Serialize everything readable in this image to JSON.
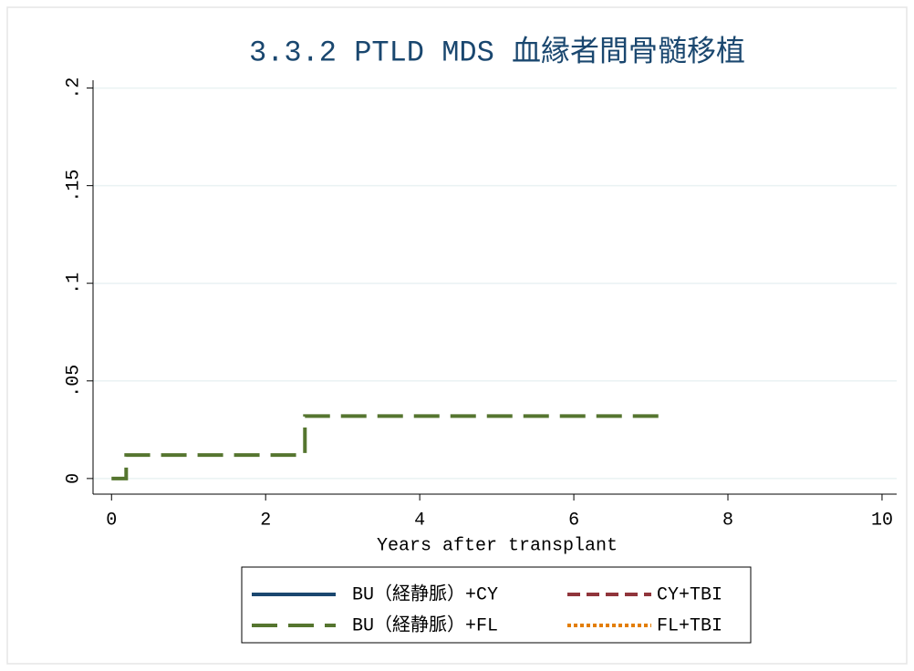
{
  "chart_data": {
    "type": "line",
    "drawstyle": "steps-post",
    "title": "3.3.2 PTLD MDS 血縁者間骨髄移植",
    "x_label": "Years after transplant",
    "xlim": [
      -0.24,
      10.19
    ],
    "ylim": [
      -0.008,
      0.204
    ],
    "xticks": [
      0,
      2,
      4,
      6,
      8,
      10
    ],
    "yticks": [
      0,
      {
        "value": 0.05,
        "label": ".05"
      },
      {
        "value": 0.1,
        "label": ".1"
      },
      {
        "value": 0.15,
        "label": ".15"
      },
      {
        "value": 0.2,
        "label": ".2"
      }
    ],
    "grid": true,
    "series": [
      {
        "name": "BU（経静脈）+CY",
        "color": "#1a476f",
        "dash": "solid",
        "x": [],
        "values": []
      },
      {
        "name": "BU（経静脈）+FL",
        "color": "#55752f",
        "dash": "long",
        "x": [
          0,
          0.19,
          2.51,
          7.22
        ],
        "values": [
          0,
          0.012,
          0.032,
          0.032
        ]
      },
      {
        "name": "CY+TBI",
        "color": "#90353b",
        "dash": "short",
        "x": [],
        "values": []
      },
      {
        "name": "FL+TBI",
        "color": "#e37e00",
        "dash": "dot",
        "x": [],
        "values": []
      }
    ]
  }
}
